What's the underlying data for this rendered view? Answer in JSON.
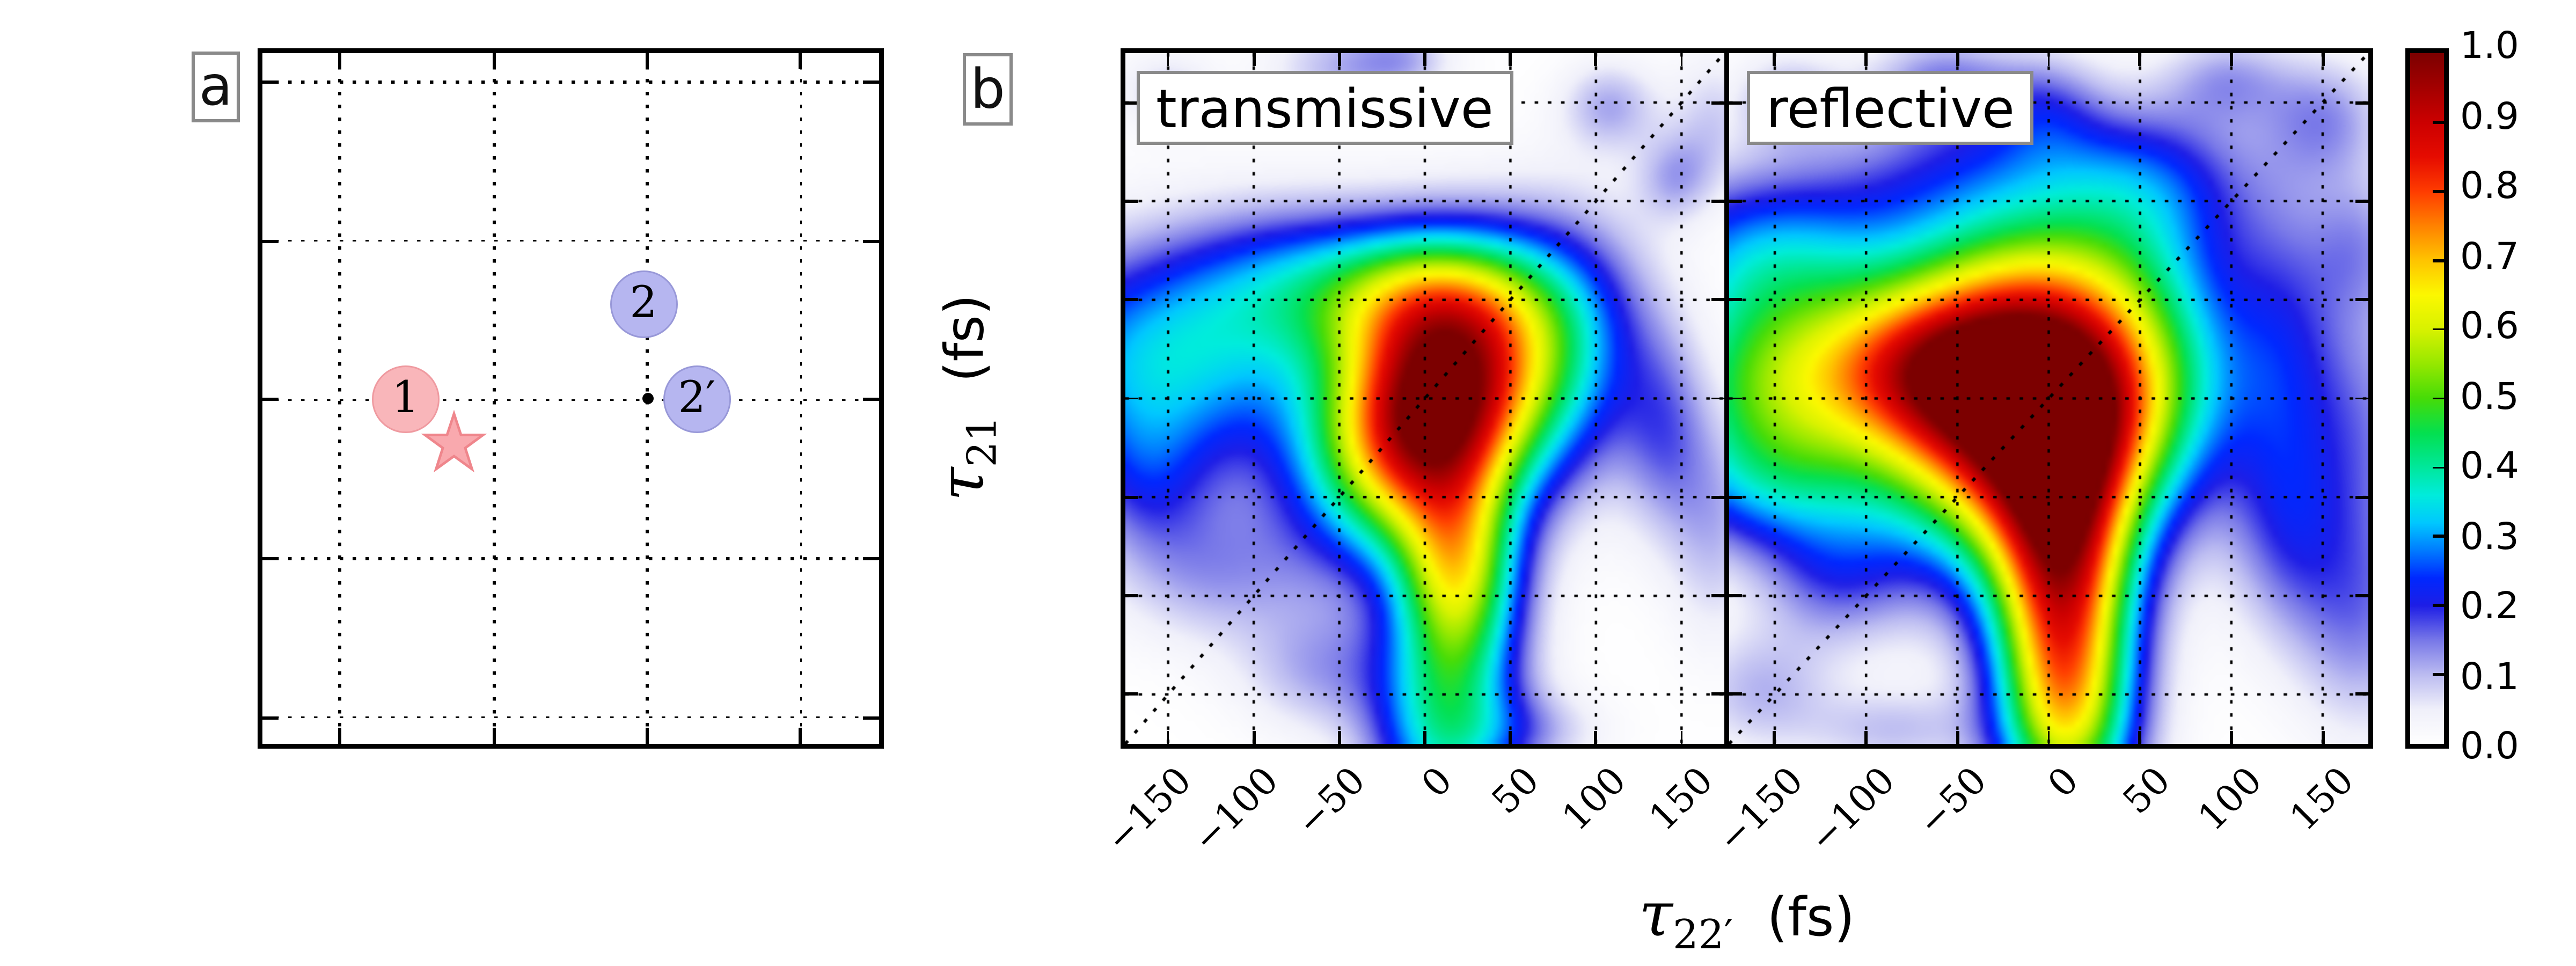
{
  "panel_a": {
    "tag": "a",
    "grid_fx": [
      0.126,
      0.376,
      0.624,
      0.873
    ],
    "grid_fy": [
      0.042,
      0.272,
      0.502,
      0.732,
      0.962
    ]
  },
  "panel_b": {
    "tag": "b"
  },
  "axis_labels": {
    "y": {
      "symbol": "τ",
      "sub": "21",
      "unit": "(fs)"
    },
    "x": {
      "symbol": "τ",
      "sub": "22′",
      "unit": "(fs)"
    }
  },
  "colors": {
    "frame": "#000000",
    "grid": "#000000",
    "box_border": "#8a8a8a",
    "pink_fill": "#f9b6ba",
    "pink_stroke": "#ef9aa0",
    "star_fill": "#f9a9ae",
    "star_stroke": "#ef868c",
    "blue_fill": "#b6b6f0",
    "blue_stroke": "#9898d8"
  },
  "chart_data": [
    {
      "type": "scatter",
      "panel": "a",
      "grid": true,
      "points": [
        {
          "kind": "circle",
          "label": "1",
          "color": "pink",
          "fx": 0.2322,
          "fy": 0.5011,
          "r": 21
        },
        {
          "kind": "star",
          "label": "",
          "color": "pink",
          "fx": 0.3111,
          "fy": 0.5655,
          "r": 19
        },
        {
          "kind": "circle",
          "label": "2",
          "color": "blue",
          "fx": 0.618,
          "fy": 0.3632,
          "r": 21
        },
        {
          "kind": "dot",
          "label": "",
          "color": "black",
          "fx": 0.6247,
          "fy": 0.5011,
          "r": 3.5
        },
        {
          "kind": "circle",
          "label": "2′",
          "color": "blue",
          "fx": 0.7044,
          "fy": 0.5011,
          "r": 21
        }
      ]
    },
    {
      "type": "heatmap",
      "name": "transmissive",
      "x_range": [
        -175,
        175
      ],
      "y_range": [
        -175,
        175
      ],
      "zlim": [
        0,
        1
      ],
      "x_ticks": [
        -150,
        -100,
        -50,
        0,
        50,
        100,
        150
      ],
      "y_ticks": [
        -150,
        -100,
        -50,
        0,
        50,
        100,
        150
      ],
      "x_tick_labels": [
        "−150",
        "−100",
        "−50",
        "0",
        "50",
        "100",
        "150"
      ],
      "grid": true,
      "diagonal": true,
      "gaussians": [
        [
          1.04,
          6,
          -6,
          46,
          44,
          0.25
        ],
        [
          0.35,
          0,
          52,
          48,
          26,
          0
        ],
        [
          0.32,
          -152,
          18,
          62,
          40,
          0
        ],
        [
          0.18,
          -78,
          58,
          48,
          28,
          0
        ],
        [
          0.18,
          88,
          25,
          34,
          46,
          0
        ],
        [
          0.5,
          20,
          -88,
          25,
          36,
          0
        ],
        [
          0.36,
          12,
          -165,
          30,
          40,
          0
        ],
        [
          0.1,
          -48,
          168,
          30,
          16,
          0
        ],
        [
          0.08,
          -12,
          172,
          20,
          12,
          0
        ],
        [
          0.08,
          -150,
          155,
          20,
          14,
          0
        ],
        [
          0.11,
          108,
          148,
          20,
          16,
          0
        ],
        [
          0.1,
          146,
          112,
          16,
          16,
          0
        ],
        [
          0.12,
          140,
          -18,
          18,
          36,
          0
        ],
        [
          0.1,
          170,
          -62,
          20,
          42,
          0
        ],
        [
          0.08,
          170,
          140,
          18,
          25,
          0
        ],
        [
          0.12,
          -162,
          -42,
          26,
          28,
          0
        ],
        [
          0.11,
          -122,
          -88,
          40,
          26,
          0
        ],
        [
          0.1,
          -62,
          -138,
          32,
          22,
          0
        ],
        [
          0.08,
          62,
          -168,
          30,
          14,
          0
        ]
      ]
    },
    {
      "type": "heatmap",
      "name": "reflective",
      "x_range": [
        -175,
        175
      ],
      "y_range": [
        -175,
        175
      ],
      "zlim": [
        0,
        1
      ],
      "x_ticks": [
        -150,
        -100,
        -50,
        0,
        50,
        100,
        150
      ],
      "y_ticks": [
        -150,
        -100,
        -50,
        0,
        50,
        100,
        150
      ],
      "x_tick_labels": [
        "−150",
        "−100",
        "−50",
        "0",
        "50",
        "100",
        "150"
      ],
      "grid": true,
      "diagonal": true,
      "gaussians": [
        [
          1.06,
          0,
          -8,
          56,
          48,
          0.2
        ],
        [
          0.42,
          -55,
          15,
          42,
          28,
          0
        ],
        [
          0.28,
          -20,
          60,
          52,
          28,
          0
        ],
        [
          0.42,
          -152,
          8,
          50,
          38,
          0
        ],
        [
          0.15,
          -95,
          20,
          45,
          35,
          0
        ],
        [
          0.22,
          -158,
          75,
          48,
          28,
          0
        ],
        [
          0.18,
          -25,
          112,
          70,
          26,
          0
        ],
        [
          0.15,
          58,
          105,
          38,
          32,
          0
        ],
        [
          0.72,
          8,
          -92,
          27,
          52,
          0
        ],
        [
          0.4,
          10,
          -168,
          26,
          38,
          0
        ],
        [
          0.18,
          -150,
          -45,
          42,
          26,
          0
        ],
        [
          0.12,
          -118,
          -92,
          28,
          24,
          0
        ],
        [
          0.1,
          -158,
          -148,
          28,
          22,
          0
        ],
        [
          0.13,
          128,
          20,
          22,
          60,
          0
        ],
        [
          0.12,
          132,
          -70,
          24,
          38,
          0
        ],
        [
          0.12,
          172,
          -15,
          26,
          50,
          0
        ],
        [
          0.12,
          172,
          -115,
          26,
          40,
          0
        ],
        [
          0.1,
          170,
          78,
          20,
          26,
          0
        ],
        [
          0.12,
          152,
          142,
          24,
          22,
          0
        ],
        [
          0.1,
          98,
          162,
          24,
          16,
          0
        ],
        [
          0.13,
          -58,
          160,
          28,
          18,
          0
        ],
        [
          0.11,
          -2,
          148,
          22,
          20,
          0
        ],
        [
          0.1,
          -142,
          152,
          22,
          16,
          0
        ],
        [
          0.09,
          -85,
          -168,
          32,
          14,
          0
        ]
      ]
    },
    {
      "type": "colorbar",
      "lim": [
        0,
        1
      ],
      "tick_labels": [
        "1.0",
        "0.9",
        "0.8",
        "0.7",
        "0.6",
        "0.5",
        "0.4",
        "0.3",
        "0.2",
        "0.1",
        "0.0"
      ],
      "stops": [
        [
          0.0,
          "#ffffff"
        ],
        [
          0.05,
          "#f0f0fa"
        ],
        [
          0.1,
          "#bcbcf1"
        ],
        [
          0.15,
          "#7878e8"
        ],
        [
          0.2,
          "#1e1ee6"
        ],
        [
          0.24,
          "#0028ff"
        ],
        [
          0.28,
          "#007cff"
        ],
        [
          0.32,
          "#00c8ff"
        ],
        [
          0.36,
          "#00ecdc"
        ],
        [
          0.4,
          "#00e89c"
        ],
        [
          0.45,
          "#04e050"
        ],
        [
          0.5,
          "#46dc08"
        ],
        [
          0.55,
          "#96e800"
        ],
        [
          0.6,
          "#d8f200"
        ],
        [
          0.65,
          "#fcf800"
        ],
        [
          0.7,
          "#ffc400"
        ],
        [
          0.75,
          "#ff8200"
        ],
        [
          0.8,
          "#ff3c00"
        ],
        [
          0.85,
          "#e60c00"
        ],
        [
          0.9,
          "#cc0000"
        ],
        [
          0.95,
          "#a40000"
        ],
        [
          1.0,
          "#7c0000"
        ]
      ]
    }
  ]
}
